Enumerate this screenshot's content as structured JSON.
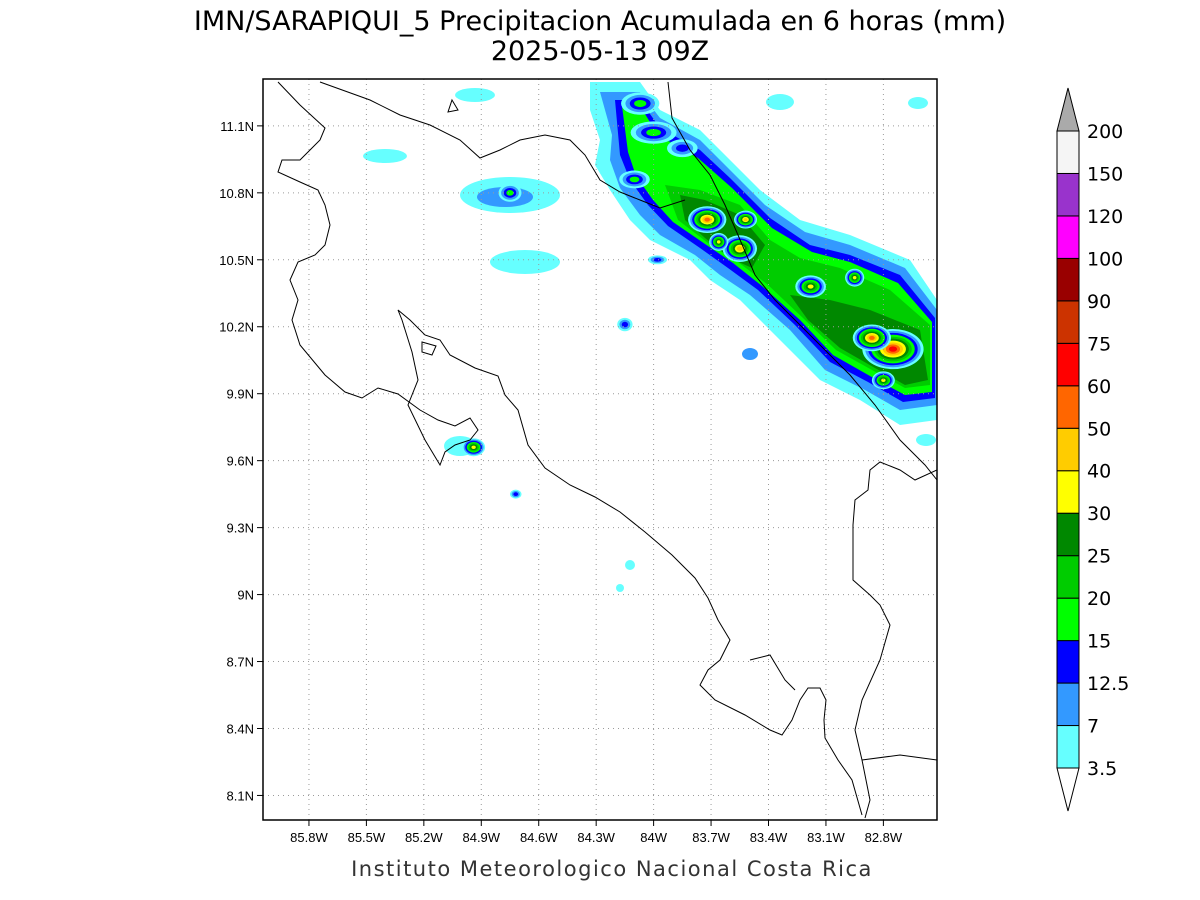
{
  "title": {
    "line1": "IMN/SARAPIQUI_5 Precipitacion Acumulada en 6 horas (mm)",
    "line2": "2025-05-13 09Z"
  },
  "footer": "Instituto Meteorologico Nacional Costa Rica",
  "map": {
    "lon_range": [
      -86.04,
      -82.52
    ],
    "lat_range": [
      7.99,
      11.31
    ],
    "x_ticks": [
      {
        "lon": -85.8,
        "label": "85.8W"
      },
      {
        "lon": -85.5,
        "label": "85.5W"
      },
      {
        "lon": -85.2,
        "label": "85.2W"
      },
      {
        "lon": -84.9,
        "label": "84.9W"
      },
      {
        "lon": -84.6,
        "label": "84.6W"
      },
      {
        "lon": -84.3,
        "label": "84.3W"
      },
      {
        "lon": -84.0,
        "label": "84W"
      },
      {
        "lon": -83.7,
        "label": "83.7W"
      },
      {
        "lon": -83.4,
        "label": "83.4W"
      },
      {
        "lon": -83.1,
        "label": "83.1W"
      },
      {
        "lon": -82.8,
        "label": "82.8W"
      }
    ],
    "y_ticks": [
      {
        "lat": 11.1,
        "label": "11.1N"
      },
      {
        "lat": 10.8,
        "label": "10.8N"
      },
      {
        "lat": 10.5,
        "label": "10.5N"
      },
      {
        "lat": 10.2,
        "label": "10.2N"
      },
      {
        "lat": 9.9,
        "label": "9.9N"
      },
      {
        "lat": 9.6,
        "label": "9.6N"
      },
      {
        "lat": 9.3,
        "label": "9.3N"
      },
      {
        "lat": 9.0,
        "label": "9N"
      },
      {
        "lat": 8.7,
        "label": "8.7N"
      },
      {
        "lat": 8.4,
        "label": "8.4N"
      },
      {
        "lat": 8.1,
        "label": "8.1N"
      }
    ]
  },
  "colorbar": {
    "levels": [
      "3.5",
      "7",
      "12.5",
      "15",
      "20",
      "25",
      "30",
      "40",
      "50",
      "60",
      "75",
      "90",
      "100",
      "120",
      "150",
      "200"
    ],
    "colors": [
      "#66ffff",
      "#3399ff",
      "#0000ff",
      "#00ff00",
      "#00cc00",
      "#008800",
      "#ffff00",
      "#ffcc00",
      "#ff6600",
      "#ff0000",
      "#cc3300",
      "#990000",
      "#ff00ff",
      "#9933cc",
      "#f5f5f5"
    ],
    "over_color": "#aaaaaa",
    "under_color": "#ffffff"
  },
  "precip_cells": [
    {
      "lon": -84.07,
      "lat": 11.2,
      "rx": 0.1,
      "ry": 0.05,
      "level": 3
    },
    {
      "lon": -84.0,
      "lat": 11.07,
      "rx": 0.12,
      "ry": 0.05,
      "level": 3
    },
    {
      "lon": -83.85,
      "lat": 11.0,
      "rx": 0.08,
      "ry": 0.04,
      "level": 2
    },
    {
      "lon": -84.1,
      "lat": 10.86,
      "rx": 0.08,
      "ry": 0.04,
      "level": 3
    },
    {
      "lon": -84.75,
      "lat": 10.8,
      "rx": 0.06,
      "ry": 0.04,
      "level": 3
    },
    {
      "lon": -83.72,
      "lat": 10.68,
      "rx": 0.1,
      "ry": 0.06,
      "level": 8
    },
    {
      "lon": -83.55,
      "lat": 10.55,
      "rx": 0.09,
      "ry": 0.06,
      "level": 7
    },
    {
      "lon": -83.52,
      "lat": 10.68,
      "rx": 0.06,
      "ry": 0.04,
      "level": 7
    },
    {
      "lon": -83.66,
      "lat": 10.58,
      "rx": 0.05,
      "ry": 0.04,
      "level": 6
    },
    {
      "lon": -83.18,
      "lat": 10.38,
      "rx": 0.08,
      "ry": 0.05,
      "level": 6
    },
    {
      "lon": -82.95,
      "lat": 10.42,
      "rx": 0.05,
      "ry": 0.04,
      "level": 6
    },
    {
      "lon": -82.75,
      "lat": 10.1,
      "rx": 0.16,
      "ry": 0.09,
      "level": 9
    },
    {
      "lon": -82.86,
      "lat": 10.15,
      "rx": 0.1,
      "ry": 0.06,
      "level": 8
    },
    {
      "lon": -82.8,
      "lat": 9.96,
      "rx": 0.06,
      "ry": 0.04,
      "level": 6
    },
    {
      "lon": -84.94,
      "lat": 9.66,
      "rx": 0.06,
      "ry": 0.04,
      "level": 6
    },
    {
      "lon": -84.72,
      "lat": 9.45,
      "rx": 0.03,
      "ry": 0.02,
      "level": 2
    },
    {
      "lon": -84.15,
      "lat": 10.21,
      "rx": 0.04,
      "ry": 0.03,
      "level": 2
    },
    {
      "lon": -83.98,
      "lat": 10.5,
      "rx": 0.05,
      "ry": 0.02,
      "level": 2
    }
  ]
}
